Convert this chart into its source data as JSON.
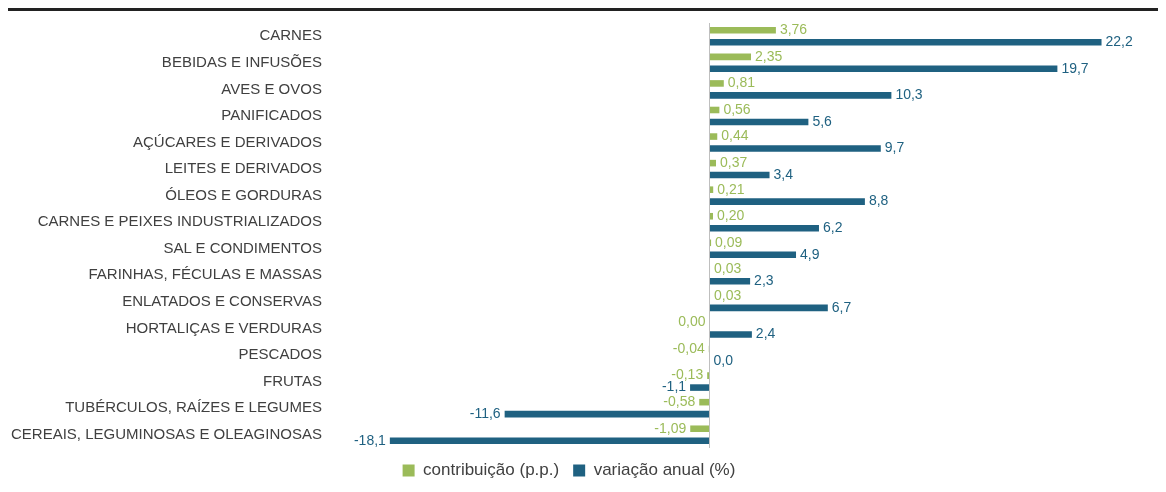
{
  "chart_data": {
    "type": "bar",
    "orientation": "horizontal",
    "relative": false,
    "legend": "bottom",
    "grid": false,
    "categories": [
      "CARNES",
      "BEBIDAS E INFUSÕES",
      "AVES E OVOS",
      "PANIFICADOS",
      "AÇÚCARES E DERIVADOS",
      "LEITES E DERIVADOS",
      "ÓLEOS E GORDURAS",
      "CARNES E PEIXES INDUSTRIALIZADOS",
      "SAL E CONDIMENTOS",
      "FARINHAS, FÉCULAS E MASSAS",
      "ENLATADOS E CONSERVAS",
      "HORTALIÇAS E VERDURAS",
      "PESCADOS",
      "FRUTAS",
      "TUBÉRCULOS, RAÍZES E LEGUMES",
      "CEREAIS, LEGUMINOSAS E OLEAGINOSAS"
    ],
    "series": [
      {
        "name": "contribuição (p.p.)",
        "color": "#9bbb59",
        "values": [
          3.76,
          2.35,
          0.81,
          0.56,
          0.44,
          0.37,
          0.21,
          0.2,
          0.09,
          0.03,
          0.03,
          0.0,
          -0.04,
          -0.13,
          -0.58,
          -1.09
        ],
        "value_labels": [
          "3,76",
          "2,35",
          "0,81",
          "0,56",
          "0,44",
          "0,37",
          "0,21",
          "0,20",
          "0,09",
          "0,03",
          "0,03",
          "0,00",
          "-0,04",
          "-0,13",
          "-0,58",
          "-1,09"
        ]
      },
      {
        "name": "variação anual (%)",
        "color": "#1f6181",
        "values": [
          22.2,
          19.7,
          10.3,
          5.6,
          9.7,
          3.4,
          8.8,
          6.2,
          4.9,
          2.3,
          6.7,
          2.4,
          0.0,
          -1.1,
          -11.6,
          -18.1
        ],
        "value_labels": [
          "22,2",
          "19,7",
          "10,3",
          "5,6",
          "9,7",
          "3,4",
          "8,8",
          "6,2",
          "4,9",
          "2,3",
          "6,7",
          "2,4",
          "0,0",
          "-1,1",
          "-11,6",
          "-18,1"
        ]
      }
    ]
  }
}
